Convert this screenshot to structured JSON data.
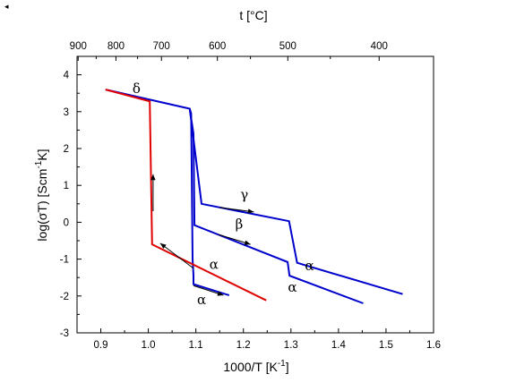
{
  "corner_mark": "◂",
  "chart_data": {
    "type": "line",
    "xlabel": "1000/T  [K",
    "xlabel_sup": "-1",
    "xlabel_end": "]",
    "ylabel": "log(σT)  [Scm",
    "ylabel_sup": "-1",
    "ylabel_end": "K]",
    "top_axis_label": "t [°C]",
    "xlim": [
      0.85,
      1.6
    ],
    "ylim": [
      -3,
      4.5
    ],
    "x_ticks": [
      0.9,
      1.0,
      1.1,
      1.2,
      1.3,
      1.4,
      1.5,
      1.6
    ],
    "x_tick_labels": [
      "0.9",
      "1.0",
      "1.1",
      "1.2",
      "1.3",
      "1.4",
      "1.5",
      "1.6"
    ],
    "y_ticks": [
      -3,
      -2,
      -1,
      0,
      1,
      2,
      3,
      4
    ],
    "y_tick_labels": [
      "-3",
      "-2",
      "-1",
      "0",
      "1",
      "2",
      "3",
      "4"
    ],
    "top_ticks_celsius": [
      900,
      800,
      700,
      600,
      500,
      400
    ],
    "top_tick_labels": [
      "900",
      "800",
      "700",
      "600",
      "500",
      "400"
    ],
    "grid": false,
    "series": [
      {
        "color": "#0000cc",
        "points": [
          [
            0.91,
            3.6
          ],
          [
            1.087,
            3.08
          ],
          [
            1.09,
            2.95
          ],
          [
            1.093,
            -1.0
          ],
          [
            1.095,
            -1.45
          ],
          [
            1.095,
            -1.68
          ],
          [
            1.17,
            -1.98
          ]
        ]
      },
      {
        "color": "#0000cc",
        "points": [
          [
            1.087,
            3.08
          ],
          [
            1.095,
            2.4
          ],
          [
            1.097,
            -0.08
          ],
          [
            1.293,
            -1.08
          ],
          [
            1.297,
            -1.45
          ],
          [
            1.452,
            -2.2
          ]
        ]
      },
      {
        "color": "#0000cc",
        "points": [
          [
            1.087,
            3.08
          ],
          [
            1.112,
            0.5
          ],
          [
            1.296,
            0.03
          ],
          [
            1.313,
            -1.1
          ],
          [
            1.535,
            -1.95
          ]
        ]
      },
      {
        "color": "#e00000",
        "points": [
          [
            0.91,
            3.6
          ],
          [
            1.003,
            3.28
          ],
          [
            1.008,
            -0.6
          ],
          [
            1.248,
            -2.12
          ]
        ]
      }
    ],
    "phase_labels": [
      {
        "text": "δ",
        "x": 0.975,
        "y": 3.5
      },
      {
        "text": "γ",
        "x": 1.202,
        "y": 0.63
      },
      {
        "text": "β",
        "x": 1.191,
        "y": -0.17
      },
      {
        "text": "α",
        "x": 1.339,
        "y": -1.3
      },
      {
        "text": "α",
        "x": 1.138,
        "y": -1.26
      },
      {
        "text": "α",
        "x": 1.303,
        "y": -1.88
      },
      {
        "text": "α",
        "x": 1.112,
        "y": -2.22
      }
    ],
    "arrows": [
      {
        "from": [
          1.15,
          0.4
        ],
        "to": [
          1.222,
          0.28
        ]
      },
      {
        "from": [
          1.147,
          -0.33
        ],
        "to": [
          1.215,
          -0.6
        ]
      },
      {
        "from": [
          1.095,
          -1.72
        ],
        "to": [
          1.158,
          -1.98
        ]
      },
      {
        "from": [
          1.095,
          -1.25
        ],
        "to": [
          1.025,
          -0.57
        ]
      },
      {
        "from": [
          1.01,
          0.3
        ],
        "to": [
          1.01,
          1.3
        ]
      }
    ]
  }
}
